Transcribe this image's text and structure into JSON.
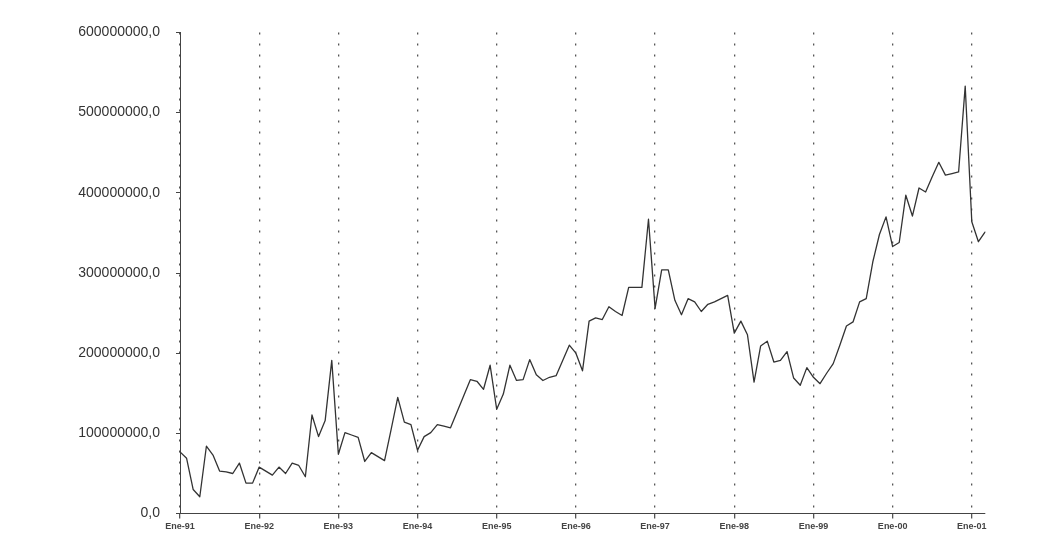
{
  "chart_data": {
    "type": "line",
    "grid": "x",
    "marker": "none",
    "line_style": "solid",
    "categories": [
      "Ene-91",
      null,
      null,
      null,
      null,
      null,
      null,
      null,
      null,
      null,
      null,
      null,
      "Ene-92",
      null,
      null,
      null,
      null,
      null,
      null,
      null,
      null,
      null,
      null,
      null,
      "Ene-93",
      null,
      null,
      null,
      null,
      null,
      null,
      null,
      null,
      null,
      null,
      null,
      "Ene-94",
      null,
      null,
      null,
      null,
      null,
      null,
      null,
      null,
      null,
      null,
      null,
      "Ene-95",
      null,
      null,
      null,
      null,
      null,
      null,
      null,
      null,
      null,
      null,
      null,
      "Ene-96",
      null,
      null,
      null,
      null,
      null,
      null,
      null,
      null,
      null,
      null,
      null,
      "Ene-97",
      null,
      null,
      null,
      null,
      null,
      null,
      null,
      null,
      null,
      null,
      null,
      "Ene-98",
      null,
      null,
      null,
      null,
      null,
      null,
      null,
      null,
      null,
      null,
      null,
      "Ene-99",
      null,
      null,
      null,
      null,
      null,
      null,
      null,
      null,
      null,
      null,
      null,
      "Ene-00",
      null,
      null,
      null,
      null,
      null,
      null,
      null,
      null,
      null,
      null,
      null,
      "Ene-01",
      null,
      null
    ],
    "ylim": [
      0,
      600000000
    ],
    "yticks": [
      {
        "value": 0,
        "label": "0,0"
      },
      {
        "value": 100000000,
        "label": "100000000,0"
      },
      {
        "value": 200000000,
        "label": "200000000,0"
      },
      {
        "value": 300000000,
        "label": "300000000,0"
      },
      {
        "value": 400000000,
        "label": "400000000,0"
      },
      {
        "value": 500000000,
        "label": "500000000,0"
      },
      {
        "value": 600000000,
        "label": "600000000,0"
      }
    ],
    "series": [
      {
        "color": "#333333",
        "values": [
          77000000,
          69000000,
          30000000,
          21000000,
          84000000,
          73000000,
          53000000,
          52000000,
          50000000,
          63000000,
          38000000,
          38000000,
          58000000,
          53000000,
          48000000,
          58000000,
          50000000,
          63000000,
          60000000,
          46000000,
          123000000,
          96000000,
          116000000,
          191000000,
          74000000,
          101000000,
          98000000,
          95000000,
          65000000,
          76000000,
          71000000,
          66000000,
          105000000,
          145000000,
          114000000,
          111000000,
          79000000,
          96000000,
          101000000,
          111000000,
          109000000,
          107000000,
          127000000,
          147000000,
          167000000,
          165000000,
          155000000,
          185000000,
          130000000,
          149000000,
          185000000,
          166000000,
          167000000,
          192000000,
          173000000,
          166000000,
          170000000,
          172000000,
          191000000,
          210000000,
          200000000,
          178000000,
          240000000,
          244000000,
          242000000,
          258000000,
          252000000,
          247000000,
          282000000,
          282000000,
          282000000,
          367000000,
          256000000,
          304000000,
          304000000,
          266000000,
          248000000,
          268000000,
          264000000,
          252000000,
          261000000,
          264000000,
          268000000,
          272000000,
          225000000,
          240000000,
          223000000,
          164000000,
          209000000,
          215000000,
          189000000,
          191000000,
          202000000,
          169000000,
          160000000,
          182000000,
          170000000,
          162000000,
          175000000,
          187000000,
          210000000,
          234000000,
          239000000,
          264000000,
          268000000,
          314000000,
          348000000,
          370000000,
          333000000,
          338000000,
          397000000,
          371000000,
          406000000,
          401000000,
          420000000,
          438000000,
          422000000,
          424000000,
          426000000,
          533000000,
          364000000,
          339000000,
          351000000
        ]
      }
    ]
  }
}
